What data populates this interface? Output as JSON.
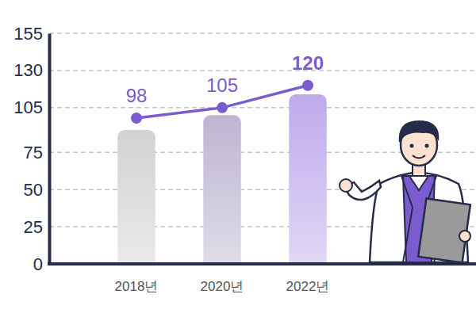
{
  "chart_data": {
    "type": "bar",
    "categories": [
      "2018년",
      "2020년",
      "2022년"
    ],
    "series": [
      {
        "type": "bar",
        "colors": [
          "#d2d2d2",
          "#bdb5d1",
          "#bfaaeb"
        ],
        "values": [
          90,
          100,
          114
        ]
      },
      {
        "type": "line",
        "color": "#7b5ccf",
        "marker": "circle",
        "data_labels": true,
        "values": [
          98,
          105,
          120
        ]
      }
    ],
    "ylim": [
      0,
      155
    ],
    "yticks": [
      0,
      25,
      50,
      75,
      105,
      130,
      155
    ],
    "grid": true
  }
}
